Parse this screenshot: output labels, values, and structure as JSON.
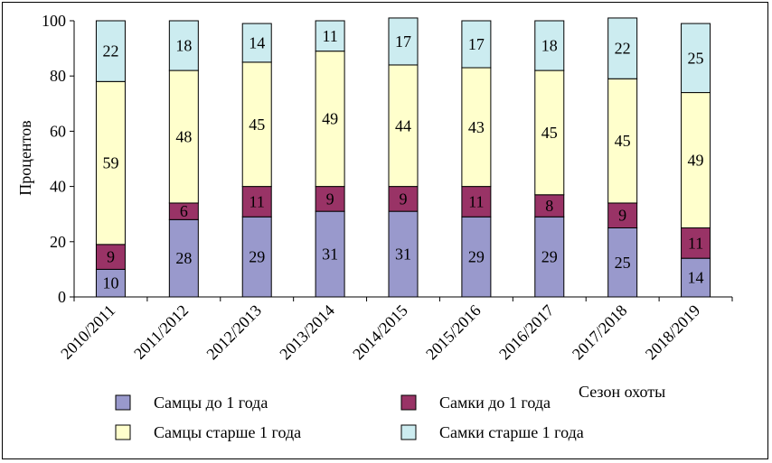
{
  "chart_data": {
    "type": "bar",
    "stacked": true,
    "percent": true,
    "categories": [
      "2010/2011",
      "2011/2012",
      "2012/2013",
      "2013/2014",
      "2014/2015",
      "2015/2016",
      "2016/2017",
      "2017/2018",
      "2018/2019"
    ],
    "series": [
      {
        "name": "Самцы до 1 года",
        "color": "#9999CC",
        "values": [
          10,
          28,
          29,
          31,
          31,
          29,
          29,
          25,
          14
        ]
      },
      {
        "name": "Самки до 1 года",
        "color": "#993366",
        "values": [
          9,
          6,
          11,
          9,
          9,
          11,
          8,
          9,
          11
        ]
      },
      {
        "name": "Самцы старше 1 года",
        "color": "#FFFFCC",
        "values": [
          59,
          48,
          45,
          49,
          44,
          43,
          45,
          45,
          49
        ]
      },
      {
        "name": "Самки старше 1 года",
        "color": "#CCECF0",
        "values": [
          22,
          18,
          14,
          11,
          17,
          17,
          18,
          22,
          25
        ]
      }
    ],
    "xlabel": "Сезон охоты",
    "ylabel": "Процентов",
    "ylim": [
      0,
      100
    ],
    "yticks": [
      0,
      20,
      40,
      60,
      80,
      100
    ],
    "grid": false,
    "legend_position": "bottom"
  }
}
